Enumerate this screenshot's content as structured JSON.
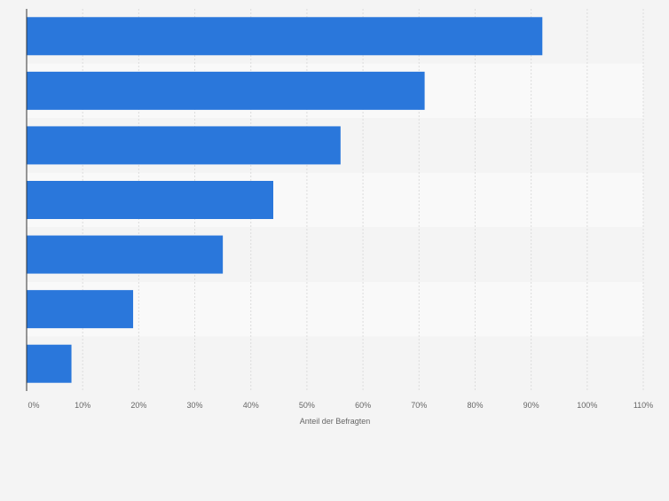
{
  "chart_data": {
    "type": "bar",
    "orientation": "horizontal",
    "categories": [
      "",
      "",
      "",
      "",
      "",
      "",
      ""
    ],
    "values": [
      92,
      71,
      56,
      44,
      35,
      19,
      8
    ],
    "unit": "%",
    "title": "",
    "xlabel": "Anteil der Befragten",
    "ylabel": "",
    "xlim": [
      0,
      110
    ],
    "x_ticks": [
      "0%",
      "10%",
      "20%",
      "30%",
      "40%",
      "50%",
      "60%",
      "70%",
      "80%",
      "90%",
      "100%",
      "110%"
    ],
    "grid": true,
    "legend": "none",
    "colors": {
      "bar": "#2a77db",
      "band_light": "#f9f9f9",
      "band_dark": "#f4f4f4",
      "grid": "#dcdcdc",
      "axis": "#333333",
      "tick_text": "#666666",
      "page_background": "#f4f4f4"
    }
  }
}
